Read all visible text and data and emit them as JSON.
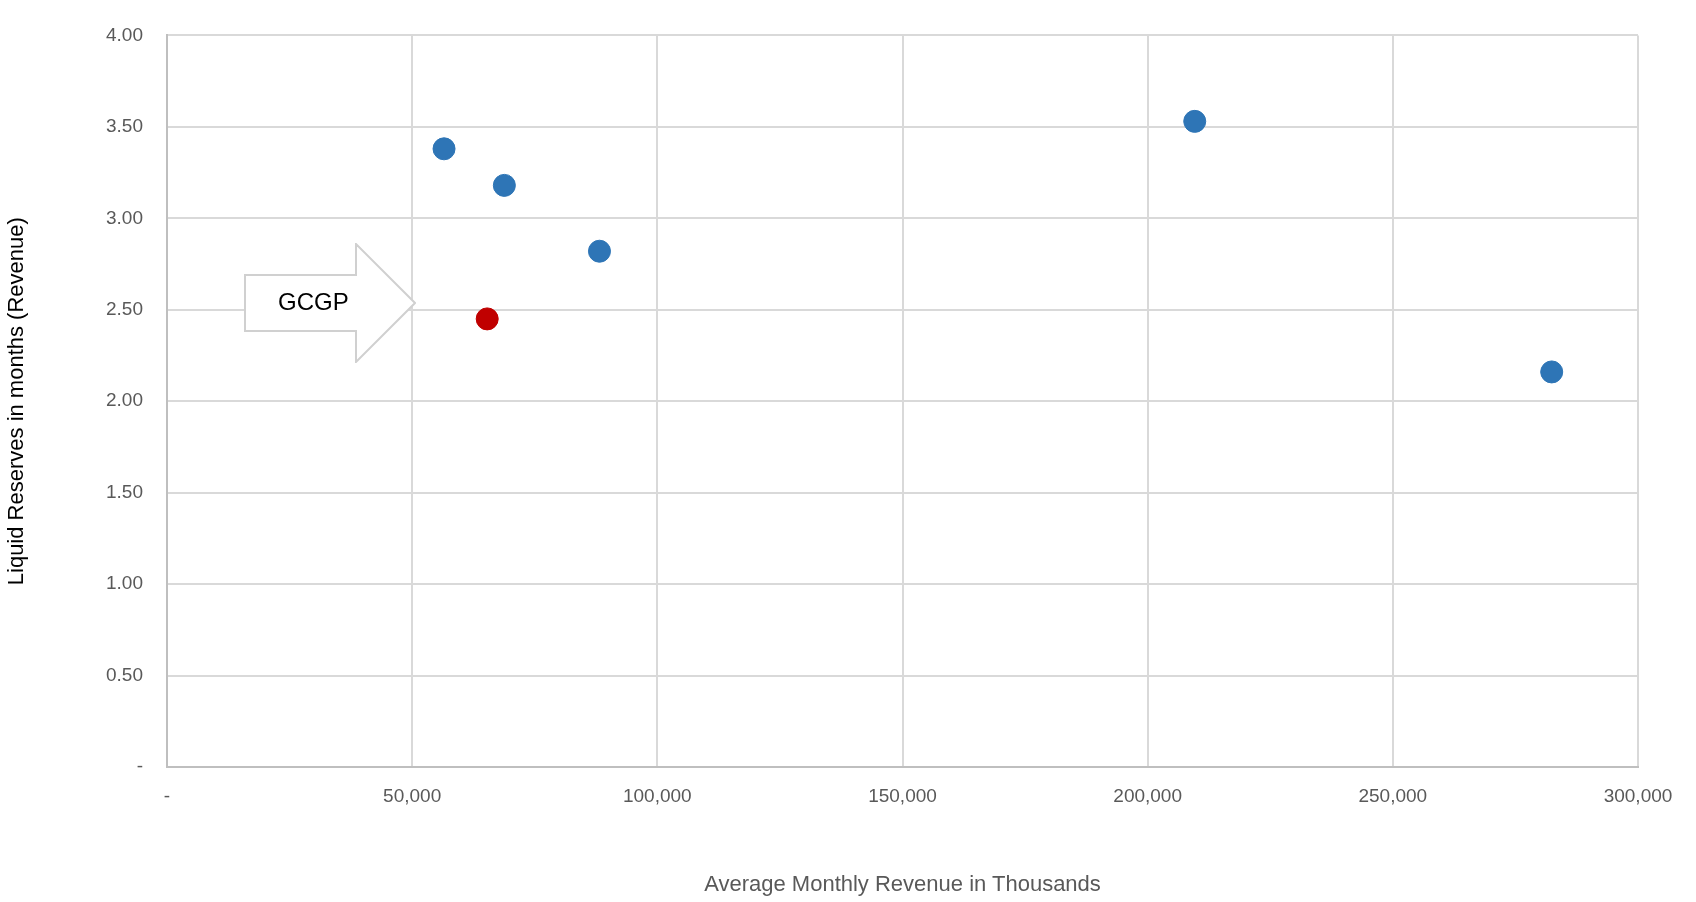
{
  "chart_data": {
    "type": "scatter",
    "xlabel": "Average Monthly Revenue in Thousands",
    "ylabel": "Liquid Reserves in months (Revenue)",
    "series": [
      {
        "color": "#2e75b6",
        "x": [
          56500,
          68800,
          88200,
          209600,
          282400
        ],
        "values": [
          3.38,
          3.18,
          2.82,
          3.53,
          2.16
        ]
      },
      {
        "color": "#c00000",
        "x": [
          65300
        ],
        "values": [
          2.45
        ]
      }
    ],
    "xlim": [
      0,
      300000
    ],
    "xticks": [
      {
        "value": 0,
        "label": "-"
      },
      {
        "value": 50000,
        "label": "50,000"
      },
      {
        "value": 100000,
        "label": "100,000"
      },
      {
        "value": 150000,
        "label": "150,000"
      },
      {
        "value": 200000,
        "label": "200,000"
      },
      {
        "value": 250000,
        "label": "250,000"
      },
      {
        "value": 300000,
        "label": "300,000"
      }
    ],
    "ylim": [
      0,
      4
    ],
    "yticks": [
      {
        "value": 0,
        "label": "-"
      },
      {
        "value": 0.5,
        "label": "0.50"
      },
      {
        "value": 1,
        "label": "1.00"
      },
      {
        "value": 1.5,
        "label": "1.50"
      },
      {
        "value": 2,
        "label": "2.00"
      },
      {
        "value": 2.5,
        "label": "2.50"
      },
      {
        "value": 3,
        "label": "3.00"
      },
      {
        "value": 3.5,
        "label": "3.50"
      },
      {
        "value": 4,
        "label": "4.00"
      }
    ],
    "annotations": [
      "GCGP"
    ],
    "grid": true,
    "marker": "circle",
    "legend": false
  }
}
